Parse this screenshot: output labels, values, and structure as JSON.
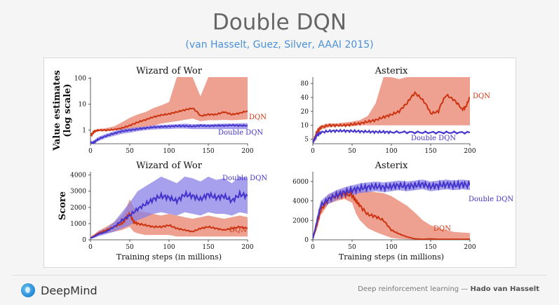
{
  "slide": {
    "title": "Double DQN",
    "subtitle": "(van Hasselt, Guez, Silver, AAAI 2015)",
    "brand": "DeepMind",
    "footer_prefix": "Deep reinforcement learning — ",
    "footer_author": "Hado van Hasselt"
  },
  "colors": {
    "dqn": "#cc3311",
    "double_dqn": "#4433cc",
    "dqn_band": "#e8826c",
    "ddqn_band": "#8a80e6"
  },
  "chart_data": [
    {
      "type": "line",
      "title": "Wizard of Wor",
      "yscale": "log",
      "ylabel": "Value estimates (log scale)",
      "xlabel": "",
      "xlim": [
        0,
        200
      ],
      "ylim": [
        0.3,
        110
      ],
      "xticks": [
        0,
        50,
        100,
        150,
        200
      ],
      "yticks": [
        1,
        10,
        100
      ],
      "series": [
        {
          "name": "DQN",
          "x": [
            0,
            2,
            5,
            10,
            20,
            30,
            40,
            50,
            60,
            70,
            80,
            90,
            100,
            110,
            120,
            130,
            140,
            150,
            160,
            170,
            180,
            190,
            200
          ],
          "values": [
            0.6,
            0.7,
            0.9,
            1.0,
            1.0,
            1.05,
            1.2,
            1.5,
            2.0,
            2.5,
            3.2,
            3.8,
            4.2,
            5.0,
            6.0,
            7.0,
            3.5,
            4.0,
            4.0,
            5.0,
            4.0,
            4.5,
            5.5
          ],
          "lower": [
            0.6,
            0.65,
            0.8,
            0.9,
            0.9,
            1.0,
            1.0,
            1.1,
            1.2,
            1.3,
            1.5,
            1.8,
            2.0,
            2.2,
            2.5,
            2.8,
            2.2,
            2.4,
            2.4,
            2.5,
            2.4,
            2.5,
            2.6
          ],
          "upper": [
            0.6,
            0.8,
            1.0,
            1.1,
            1.2,
            1.4,
            2.0,
            3.0,
            4.0,
            5.0,
            7.0,
            9.0,
            12.0,
            110,
            110,
            110,
            20,
            110,
            110,
            110,
            110,
            110,
            110
          ]
        },
        {
          "name": "Double DQN",
          "x": [
            0,
            2,
            5,
            10,
            20,
            30,
            40,
            50,
            60,
            70,
            80,
            90,
            100,
            110,
            120,
            130,
            140,
            150,
            160,
            170,
            180,
            190,
            200
          ],
          "values": [
            0.35,
            0.3,
            0.35,
            0.45,
            0.6,
            0.75,
            0.9,
            1.0,
            1.1,
            1.2,
            1.3,
            1.35,
            1.4,
            1.45,
            1.45,
            1.4,
            1.5,
            1.45,
            1.5,
            1.5,
            1.55,
            1.5,
            1.5
          ],
          "lower": [
            0.3,
            0.28,
            0.3,
            0.38,
            0.5,
            0.6,
            0.72,
            0.8,
            0.9,
            1.0,
            1.05,
            1.1,
            1.1,
            1.15,
            1.15,
            1.1,
            1.1,
            1.1,
            1.1,
            1.1,
            1.1,
            1.1,
            1.1
          ],
          "upper": [
            0.4,
            0.35,
            0.42,
            0.55,
            0.72,
            0.9,
            1.1,
            1.2,
            1.3,
            1.4,
            1.55,
            1.6,
            1.65,
            1.7,
            1.8,
            1.7,
            1.75,
            1.7,
            1.75,
            1.8,
            1.8,
            1.85,
            1.85
          ]
        }
      ]
    },
    {
      "type": "line",
      "title": "Asterix",
      "yscale": "log",
      "ylabel": "",
      "xlabel": "",
      "xlim": [
        0,
        200
      ],
      "ylim": [
        4,
        110
      ],
      "xticks": [
        0,
        50,
        100,
        150,
        200
      ],
      "yticks": [
        5,
        10,
        20,
        40,
        80
      ],
      "series": [
        {
          "name": "DQN",
          "x": [
            0,
            2,
            5,
            10,
            20,
            30,
            40,
            50,
            60,
            70,
            80,
            90,
            100,
            110,
            120,
            130,
            140,
            150,
            160,
            170,
            180,
            190,
            195,
            200
          ],
          "values": [
            4.2,
            5,
            7,
            9,
            10,
            10,
            10,
            10.5,
            11,
            12,
            13,
            15,
            17,
            20,
            30,
            50,
            35,
            18,
            20,
            45,
            35,
            22,
            25,
            40
          ],
          "lower": [
            4.2,
            4.8,
            6,
            8,
            9,
            9.5,
            9.5,
            9.5,
            10,
            10,
            10,
            10,
            10,
            10,
            10,
            10,
            10,
            10,
            10,
            10,
            10,
            10,
            10,
            10
          ],
          "upper": [
            4.2,
            5.5,
            8,
            10,
            11,
            11,
            11.5,
            12,
            13,
            16,
            30,
            110,
            110,
            100,
            110,
            110,
            110,
            110,
            110,
            110,
            110,
            110,
            110,
            110
          ]
        },
        {
          "name": "Double DQN",
          "x": [
            0,
            2,
            5,
            10,
            20,
            30,
            40,
            50,
            60,
            70,
            80,
            90,
            100,
            120,
            140,
            160,
            180,
            200
          ],
          "values": [
            4.2,
            5,
            6,
            7,
            7.5,
            7.6,
            7.6,
            7.5,
            7.4,
            7.3,
            7.2,
            7.2,
            7.1,
            7.1,
            7.0,
            7.0,
            7.0,
            7.0
          ],
          "lower": [
            4.2,
            4.9,
            5.8,
            6.8,
            7.3,
            7.4,
            7.4,
            7.3,
            7.2,
            7.1,
            7.0,
            7.0,
            6.9,
            6.9,
            6.8,
            6.8,
            6.8,
            6.8
          ],
          "upper": [
            4.2,
            5.1,
            6.2,
            7.2,
            7.7,
            7.8,
            7.8,
            7.7,
            7.6,
            7.5,
            7.4,
            7.4,
            7.3,
            7.3,
            7.2,
            7.2,
            7.2,
            7.2
          ]
        }
      ]
    },
    {
      "type": "line",
      "title": "Wizard of Wor",
      "yscale": "linear",
      "ylabel": "Score",
      "xlabel": "Training steps (in millions)",
      "xlim": [
        0,
        200
      ],
      "ylim": [
        0,
        4200
      ],
      "xticks": [
        0,
        50,
        100,
        150,
        200
      ],
      "yticks": [
        0,
        1000,
        2000,
        3000,
        4000
      ],
      "series": [
        {
          "name": "DQN",
          "x": [
            0,
            5,
            10,
            20,
            30,
            40,
            45,
            50,
            55,
            60,
            70,
            80,
            90,
            100,
            110,
            120,
            130,
            140,
            150,
            160,
            170,
            180,
            190,
            200
          ],
          "values": [
            100,
            250,
            400,
            600,
            800,
            1000,
            1300,
            1600,
            1100,
            1000,
            900,
            800,
            800,
            900,
            700,
            600,
            500,
            700,
            800,
            700,
            600,
            700,
            800,
            700
          ],
          "lower": [
            50,
            150,
            250,
            400,
            500,
            600,
            700,
            800,
            500,
            400,
            300,
            300,
            300,
            300,
            200,
            200,
            200,
            200,
            200,
            200,
            200,
            200,
            200,
            200
          ],
          "upper": [
            200,
            350,
            550,
            800,
            1100,
            1500,
            1900,
            2500,
            2000,
            1800,
            1700,
            1600,
            1500,
            1600,
            1500,
            1400,
            1300,
            1400,
            1500,
            1400,
            1300,
            1400,
            1500,
            1400
          ]
        },
        {
          "name": "Double DQN",
          "x": [
            0,
            5,
            10,
            20,
            30,
            40,
            50,
            60,
            70,
            80,
            90,
            100,
            110,
            120,
            130,
            140,
            150,
            160,
            170,
            180,
            190,
            200
          ],
          "values": [
            100,
            200,
            350,
            500,
            800,
            1200,
            1500,
            1900,
            2200,
            2500,
            2700,
            2600,
            2400,
            2800,
            2700,
            2500,
            2800,
            2600,
            2700,
            2400,
            2800,
            2700
          ],
          "lower": [
            50,
            120,
            220,
            350,
            500,
            700,
            900,
            1200,
            1400,
            1600,
            1700,
            1600,
            1500,
            1700,
            1600,
            1500,
            1700,
            1600,
            1600,
            1500,
            1700,
            1600
          ],
          "upper": [
            150,
            300,
            500,
            700,
            1100,
            1700,
            2300,
            3000,
            3300,
            3600,
            3900,
            3700,
            3500,
            3900,
            3800,
            3600,
            3900,
            3700,
            3800,
            3500,
            3900,
            3800
          ]
        }
      ]
    },
    {
      "type": "line",
      "title": "Asterix",
      "yscale": "linear",
      "ylabel": "",
      "xlabel": "Training steps (in millions)",
      "xlim": [
        0,
        200
      ],
      "ylim": [
        0,
        7000
      ],
      "xticks": [
        0,
        50,
        100,
        150,
        200
      ],
      "yticks": [
        0,
        2000,
        4000,
        6000
      ],
      "series": [
        {
          "name": "DQN",
          "x": [
            0,
            5,
            10,
            20,
            30,
            40,
            50,
            55,
            60,
            70,
            80,
            90,
            100,
            110,
            120,
            130,
            140,
            150,
            160,
            180,
            200
          ],
          "values": [
            100,
            1500,
            3000,
            4200,
            4500,
            4700,
            4600,
            4000,
            3500,
            2600,
            2400,
            2000,
            1000,
            600,
            300,
            100,
            50,
            100,
            50,
            50,
            50
          ],
          "lower": [
            50,
            1000,
            2500,
            3700,
            4000,
            4200,
            3800,
            2700,
            2000,
            1200,
            800,
            500,
            200,
            100,
            50,
            20,
            20,
            20,
            20,
            20,
            20
          ],
          "upper": [
            150,
            2000,
            3500,
            4700,
            5000,
            5200,
            5300,
            5300,
            5100,
            5000,
            4900,
            4800,
            4500,
            4000,
            3500,
            2800,
            2000,
            1500,
            1200,
            800,
            700
          ]
        },
        {
          "name": "Double DQN",
          "x": [
            0,
            5,
            10,
            20,
            30,
            40,
            50,
            60,
            70,
            80,
            90,
            100,
            110,
            120,
            130,
            140,
            150,
            160,
            170,
            180,
            190,
            200
          ],
          "values": [
            100,
            1800,
            3500,
            4200,
            4600,
            4900,
            5100,
            5300,
            5400,
            5500,
            5400,
            5500,
            5600,
            5500,
            5600,
            5700,
            5500,
            5600,
            5700,
            5600,
            5700,
            5600
          ],
          "lower": [
            50,
            1300,
            3000,
            3700,
            4100,
            4400,
            4600,
            4800,
            4900,
            5000,
            4900,
            5000,
            5100,
            5000,
            5100,
            5200,
            5000,
            5100,
            5200,
            5100,
            5200,
            5100
          ],
          "upper": [
            150,
            2300,
            4000,
            4700,
            5100,
            5400,
            5600,
            5800,
            5900,
            6000,
            5900,
            6000,
            6100,
            6000,
            6100,
            6200,
            6000,
            6100,
            6200,
            6100,
            6200,
            6100
          ]
        }
      ]
    }
  ]
}
